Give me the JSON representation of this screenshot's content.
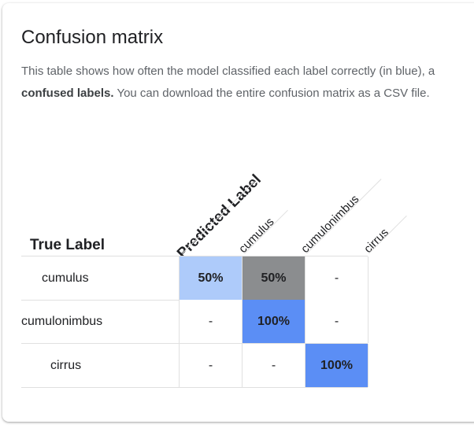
{
  "card": {
    "title": "Confusion matrix",
    "description_start": "This table shows how often the model classified each label correctly (in blue), a",
    "description_bold": "confused labels.",
    "description_end": " You can download the entire confusion matrix as a CSV file."
  },
  "matrix": {
    "true_label_heading": "True Label",
    "predicted_label_heading": "Predicted Label",
    "columns": [
      "cumulus",
      "cumulonimbus",
      "cirrus"
    ],
    "rows": [
      {
        "label": "cumulus",
        "cells": [
          "50%",
          "50%",
          "-"
        ]
      },
      {
        "label": "cumulonimbus",
        "cells": [
          "-",
          "100%",
          "-"
        ]
      },
      {
        "label": "cirrus",
        "cells": [
          "-",
          "-",
          "100%"
        ]
      }
    ],
    "cell_colors": [
      [
        "#aecbfa",
        "#8b8d8f",
        "#ffffff"
      ],
      [
        "#ffffff",
        "#5b8ef5",
        "#ffffff"
      ],
      [
        "#ffffff",
        "#ffffff",
        "#5b8ef5"
      ]
    ]
  }
}
